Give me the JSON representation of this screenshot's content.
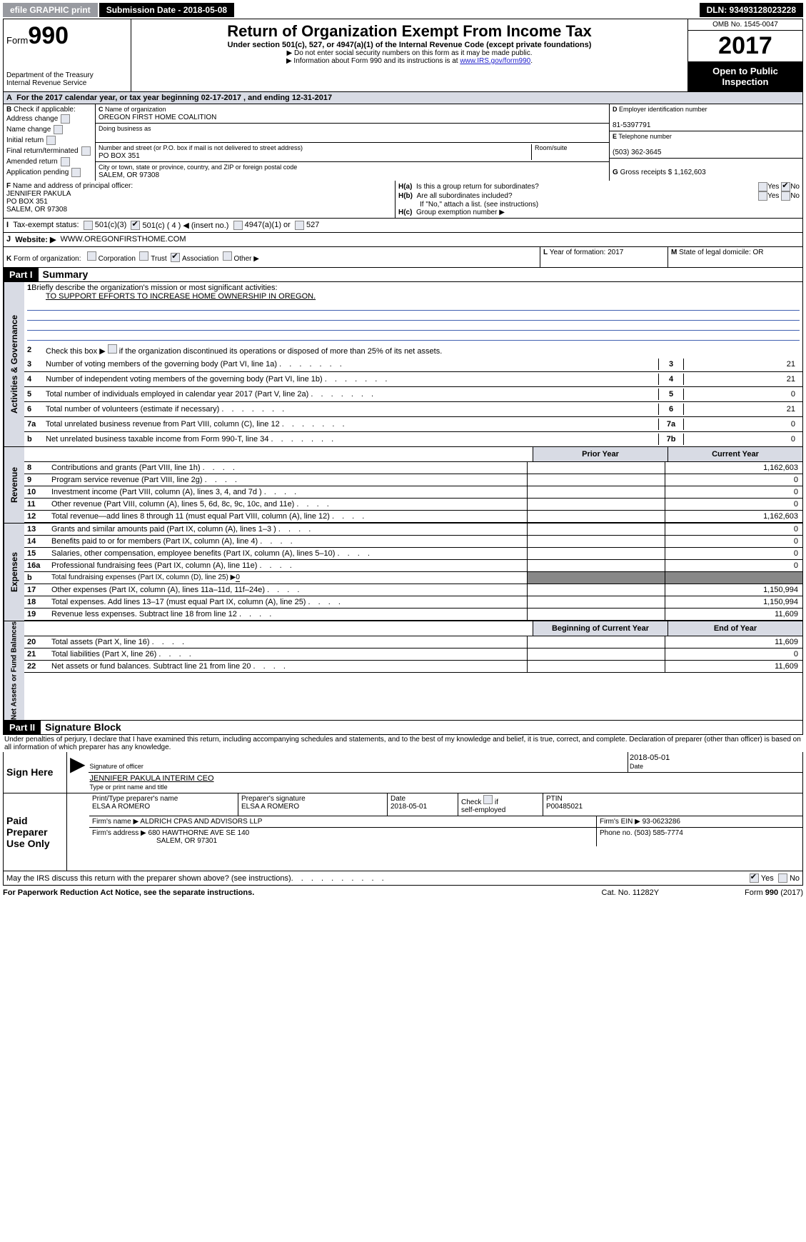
{
  "top": {
    "efile": "efile GRAPHIC print",
    "subm": "Submission Date - 2018-05-08",
    "dln": "DLN: 93493128023228"
  },
  "hdr": {
    "form": "Form",
    "n990": "990",
    "dept": "Department of the Treasury",
    "irs": "Internal Revenue Service",
    "title": "Return of Organization Exempt From Income Tax",
    "sub1": "Under section 501(c), 527, or 4947(a)(1) of the Internal Revenue Code (except private foundations)",
    "sub2": "▶ Do not enter social security numbers on this form as it may be made public.",
    "sub3": "▶ Information about Form 990 and its instructions is at ",
    "link": "www.IRS.gov/form990",
    "omb": "OMB No. 1545-0047",
    "year": "2017",
    "open": "Open to Public Inspection"
  },
  "A": {
    "text": "For the 2017 calendar year, or tax year beginning 02-17-2017      , and ending 12-31-2017"
  },
  "B": {
    "label": "Check if applicable:",
    "items": [
      "Address change",
      "Name change",
      "Initial return",
      "Final return/terminated",
      "Amended return",
      "Application pending"
    ]
  },
  "C": {
    "nameL": "Name of organization",
    "name": "OREGON FIRST HOME COALITION",
    "dbaL": "Doing business as",
    "dba": "",
    "addrL": "Number and street (or P.O. box if mail is not delivered to street address)",
    "room": "Room/suite",
    "addr": "PO BOX 351",
    "cityL": "City or town, state or province, country, and ZIP or foreign postal code",
    "city": "SALEM, OR  97308"
  },
  "D": {
    "l": "Employer identification number",
    "v": "81-5397791"
  },
  "E": {
    "l": "Telephone number",
    "v": "(503) 362-3645"
  },
  "G": {
    "l": "Gross receipts $",
    "v": "1,162,603"
  },
  "F": {
    "l": "Name and address of principal officer:",
    "v1": "JENNIFER PAKULA",
    "v2": "PO BOX 351",
    "v3": "SALEM, OR  97308"
  },
  "H": {
    "a": "Is this a group return for subordinates?",
    "b": "Are all subordinates included?",
    "bno": "If \"No,\" attach a list. (see instructions)",
    "c": "Group exemption number ▶",
    "yes": "Yes",
    "no": "No"
  },
  "I": {
    "l": "Tax-exempt status:",
    "o1": "501(c)(3)",
    "o2": "501(c) ( 4 ) ◀ (insert no.)",
    "o3": "4947(a)(1) or",
    "o4": "527"
  },
  "J": {
    "l": "Website: ▶",
    "v": "WWW.OREGONFIRSTHOME.COM"
  },
  "K": {
    "l": "Form of organization:",
    "o": [
      "Corporation",
      "Trust",
      "Association",
      "Other ▶"
    ]
  },
  "L": {
    "l": "Year of formation:",
    "v": "2017"
  },
  "M": {
    "l": "State of legal domicile:",
    "v": "OR"
  },
  "part1": {
    "bar": "Part I",
    "title": "Summary",
    "side": "Activities & Governance",
    "side2": "Revenue",
    "side3": "Expenses",
    "side4": "Net Assets or Fund Balances",
    "l1": "Briefly describe the organization's mission or most significant activities:",
    "mission": "TO SUPPORT EFFORTS TO INCREASE HOME OWNERSHIP IN OREGON.",
    "l2": "Check this box ▶         if the organization discontinued its operations or disposed of more than 25% of its net assets.",
    "lines": [
      {
        "n": "3",
        "t": "Number of voting members of the governing body (Part VI, line 1a)",
        "box": "3",
        "v": "21"
      },
      {
        "n": "4",
        "t": "Number of independent voting members of the governing body (Part VI, line 1b)",
        "box": "4",
        "v": "21"
      },
      {
        "n": "5",
        "t": "Total number of individuals employed in calendar year 2017 (Part V, line 2a)",
        "box": "5",
        "v": "0"
      },
      {
        "n": "6",
        "t": "Total number of volunteers (estimate if necessary)",
        "box": "6",
        "v": "21"
      },
      {
        "n": "7a",
        "t": "Total unrelated business revenue from Part VIII, column (C), line 12",
        "box": "7a",
        "v": "0"
      },
      {
        "n": "b",
        "t": "Net unrelated business taxable income from Form 990-T, line 34",
        "box": "7b",
        "v": "0"
      }
    ],
    "colh": {
      "p": "Prior Year",
      "c": "Current Year",
      "b": "Beginning of Current Year",
      "e": "End of Year"
    },
    "rev": [
      {
        "n": "8",
        "t": "Contributions and grants (Part VIII, line 1h)",
        "p": "",
        "c": "1,162,603"
      },
      {
        "n": "9",
        "t": "Program service revenue (Part VIII, line 2g)",
        "p": "",
        "c": "0"
      },
      {
        "n": "10",
        "t": "Investment income (Part VIII, column (A), lines 3, 4, and 7d )",
        "p": "",
        "c": "0"
      },
      {
        "n": "11",
        "t": "Other revenue (Part VIII, column (A), lines 5, 6d, 8c, 9c, 10c, and 11e)",
        "p": "",
        "c": "0"
      },
      {
        "n": "12",
        "t": "Total revenue—add lines 8 through 11 (must equal Part VIII, column (A), line 12)",
        "p": "",
        "c": "1,162,603"
      }
    ],
    "exp": [
      {
        "n": "13",
        "t": "Grants and similar amounts paid (Part IX, column (A), lines 1–3 )",
        "p": "",
        "c": "0"
      },
      {
        "n": "14",
        "t": "Benefits paid to or for members (Part IX, column (A), line 4)",
        "p": "",
        "c": "0"
      },
      {
        "n": "15",
        "t": "Salaries, other compensation, employee benefits (Part IX, column (A), lines 5–10)",
        "p": "",
        "c": "0"
      },
      {
        "n": "16a",
        "t": "Professional fundraising fees (Part IX, column (A), line 11e)",
        "p": "",
        "c": "0"
      },
      {
        "n": "b",
        "t": "Total fundraising expenses (Part IX, column (D), line 25) ▶",
        "p": "—",
        "c": "—",
        "sub": "0"
      },
      {
        "n": "17",
        "t": "Other expenses (Part IX, column (A), lines 11a–11d, 11f–24e)",
        "p": "",
        "c": "1,150,994"
      },
      {
        "n": "18",
        "t": "Total expenses. Add lines 13–17 (must equal Part IX, column (A), line 25)",
        "p": "",
        "c": "1,150,994"
      },
      {
        "n": "19",
        "t": "Revenue less expenses. Subtract line 18 from line 12",
        "p": "",
        "c": "11,609"
      }
    ],
    "net": [
      {
        "n": "20",
        "t": "Total assets (Part X, line 16)",
        "p": "",
        "c": "11,609"
      },
      {
        "n": "21",
        "t": "Total liabilities (Part X, line 26)",
        "p": "",
        "c": "0"
      },
      {
        "n": "22",
        "t": "Net assets or fund balances. Subtract line 21 from line 20",
        "p": "",
        "c": "11,609"
      }
    ]
  },
  "part2": {
    "bar": "Part II",
    "title": "Signature Block",
    "pen": "Under penalties of perjury, I declare that I have examined this return, including accompanying schedules and statements, and to the best of my knowledge and belief, it is true, correct, and complete. Declaration of preparer (other than officer) is based on all information of which preparer has any knowledge.",
    "sign": "Sign Here",
    "sigoff": "Signature of officer",
    "date": "Date",
    "sigdate": "2018-05-01",
    "name": "JENNIFER PAKULA INTERIM CEO",
    "nameL": "Type or print name and title",
    "paid": "Paid Preparer Use Only",
    "p": {
      "name": "ELSA A ROMERO",
      "nameL": "Print/Type preparer's name",
      "sigL": "Preparer's signature",
      "sig": "ELSA A ROMERO",
      "dateL": "Date",
      "date": "2018-05-01",
      "self": "self-employed",
      "check": "Check          if",
      "ptinL": "PTIN",
      "ptin": "P00485021",
      "firmL": "Firm's name    ▶",
      "firm": "ALDRICH CPAS AND ADVISORS LLP",
      "einL": "Firm's EIN ▶",
      "ein": "93-0623286",
      "addrL": "Firm's address ▶",
      "addr": "680 HAWTHORNE AVE SE 140",
      "addr2": "SALEM, OR  97301",
      "phoneL": "Phone no.",
      "phone": "(503) 585-7774"
    },
    "disc": "May the IRS discuss this return with the preparer shown above? (see instructions)"
  },
  "footer": {
    "pra": "For Paperwork Reduction Act Notice, see the separate instructions.",
    "cat": "Cat. No. 11282Y",
    "form": "Form 990 (2017)"
  }
}
